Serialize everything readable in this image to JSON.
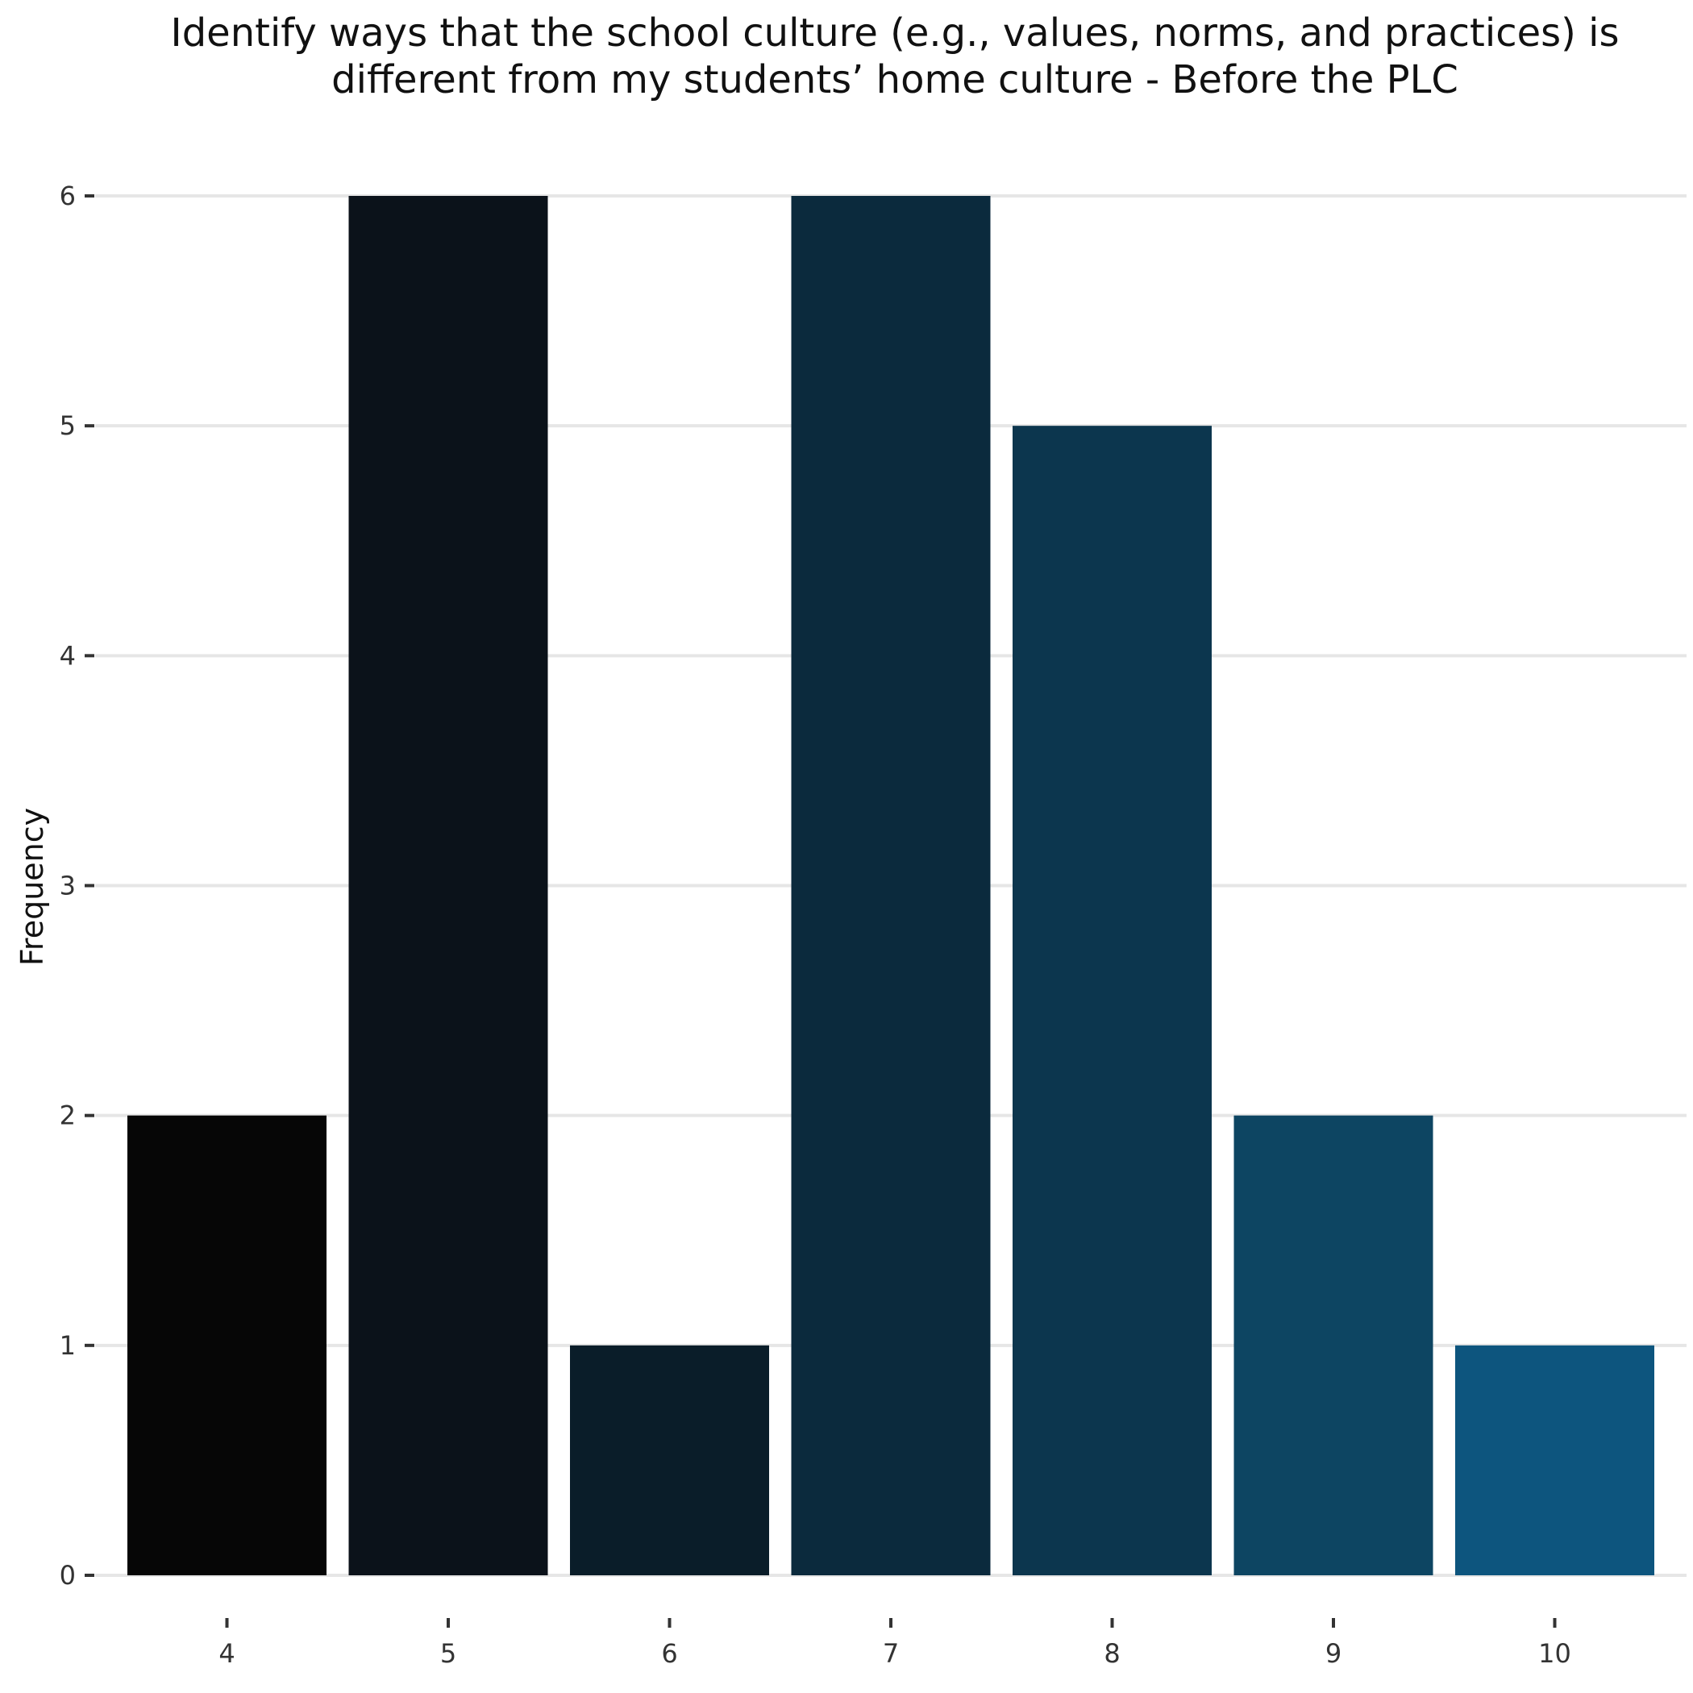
{
  "chart_data": {
    "type": "bar",
    "title_lines": [
      "Identify ways that the school culture (e.g., values, norms, and practices) is",
      "different from my students’ home culture - Before the PLC"
    ],
    "xlabel": "",
    "ylabel": "Frequency",
    "categories": [
      "4",
      "5",
      "6",
      "7",
      "8",
      "9",
      "10"
    ],
    "values": [
      2,
      6,
      1,
      6,
      5,
      2,
      1
    ],
    "colors": [
      "#060606",
      "#0b121a",
      "#0a1d29",
      "#0b2a3d",
      "#0c364e",
      "#0d4562",
      "#0d557e"
    ],
    "ylim": [
      0,
      6
    ],
    "yticks": [
      0,
      1,
      2,
      3,
      4,
      5,
      6
    ],
    "grid": true,
    "gridline_color": "#e6e6e6"
  }
}
